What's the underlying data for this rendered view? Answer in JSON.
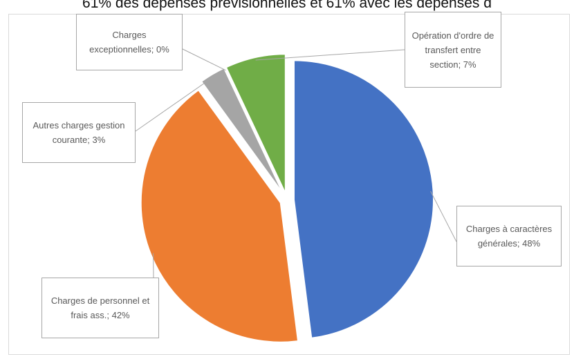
{
  "header": {
    "caption": "61% des dépenses prévisionnelles et 61% avec les dépenses d"
  },
  "chart_data": {
    "type": "pie",
    "title": "",
    "slices": [
      {
        "label": "Charges à caractères générales",
        "value": 48,
        "value_label": "Charges à caractères générales; 48%",
        "color": "#4472c4",
        "exploded": true
      },
      {
        "label": "Charges de personnel et frais ass.",
        "value": 42,
        "value_label": "Charges de personnel et frais ass.; 42%",
        "color": "#ed7d31",
        "exploded": true
      },
      {
        "label": "Autres charges gestion courante",
        "value": 3,
        "value_label": "Autres charges gestion courante; 3%",
        "color": "#a5a5a5",
        "exploded": true
      },
      {
        "label": "Charges exceptionnelles",
        "value": 0,
        "value_label": "Charges exceptionnelles; 0%",
        "color": "#ffc000",
        "exploded": true
      },
      {
        "label": "Opération d'ordre de transfert entre section",
        "value": 7,
        "value_label": "Opération d'ordre de transfert entre section; 7%",
        "color": "#70ad47",
        "exploded": true
      }
    ],
    "legend": "none",
    "data_labels": "callouts"
  }
}
